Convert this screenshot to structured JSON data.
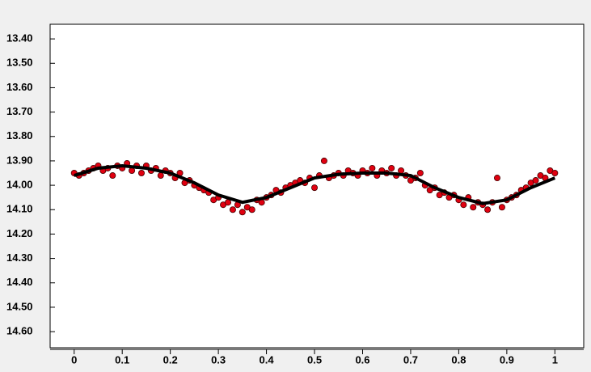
{
  "chart_data": {
    "type": "scatter",
    "xlim": [
      -0.05,
      1.06
    ],
    "ylim": [
      13.34,
      14.666
    ],
    "y_inverted": true,
    "xticks": [
      0,
      0.1,
      0.2,
      0.3,
      0.4,
      0.5,
      0.6,
      0.7,
      0.8,
      0.9,
      1
    ],
    "yticks": [
      {
        "value": 13.4,
        "label": "13.40"
      },
      {
        "value": 13.5,
        "label": "13.50"
      },
      {
        "value": 13.6,
        "label": "13.60"
      },
      {
        "value": 13.7,
        "label": "13.70"
      },
      {
        "value": 13.8,
        "label": "13.80"
      },
      {
        "value": 13.9,
        "label": "13.90"
      },
      {
        "value": 14.0,
        "label": "14.00"
      },
      {
        "value": 14.1,
        "label": "14.10"
      },
      {
        "value": 14.2,
        "label": "14.20"
      },
      {
        "value": 14.3,
        "label": "14.30"
      },
      {
        "value": 14.4,
        "label": "14.40"
      },
      {
        "value": 14.5,
        "label": "14.50"
      },
      {
        "value": 14.6,
        "label": "14.60"
      }
    ],
    "series": [
      {
        "color": "#e00010",
        "mode": "points",
        "x": [
          0,
          0.01,
          0.02,
          0.03,
          0.04,
          0.05,
          0.06,
          0.07,
          0.08,
          0.09,
          0.1,
          0.11,
          0.12,
          0.13,
          0.14,
          0.15,
          0.16,
          0.17,
          0.18,
          0.19,
          0.2,
          0.21,
          0.22,
          0.23,
          0.24,
          0.25,
          0.26,
          0.27,
          0.28,
          0.29,
          0.3,
          0.31,
          0.32,
          0.33,
          0.34,
          0.35,
          0.36,
          0.37,
          0.38,
          0.39,
          0.4,
          0.41,
          0.42,
          0.43,
          0.44,
          0.45,
          0.46,
          0.47,
          0.48,
          0.49,
          0.5,
          0.51,
          0.52,
          0.53,
          0.54,
          0.55,
          0.56,
          0.57,
          0.58,
          0.59,
          0.6,
          0.61,
          0.62,
          0.63,
          0.64,
          0.65,
          0.66,
          0.67,
          0.68,
          0.69,
          0.7,
          0.71,
          0.72,
          0.73,
          0.74,
          0.75,
          0.76,
          0.77,
          0.78,
          0.79,
          0.8,
          0.81,
          0.82,
          0.83,
          0.84,
          0.85,
          0.86,
          0.87,
          0.88,
          0.89,
          0.9,
          0.91,
          0.92,
          0.93,
          0.94,
          0.95,
          0.96,
          0.97,
          0.98,
          0.99,
          1
        ],
        "values": [
          13.95,
          13.96,
          13.95,
          13.94,
          13.93,
          13.92,
          13.94,
          13.93,
          13.96,
          13.92,
          13.93,
          13.91,
          13.94,
          13.92,
          13.95,
          13.92,
          13.94,
          13.93,
          13.96,
          13.94,
          13.95,
          13.97,
          13.95,
          13.99,
          13.98,
          14.0,
          14.01,
          14.02,
          14.03,
          14.06,
          14.05,
          14.08,
          14.07,
          14.1,
          14.08,
          14.11,
          14.09,
          14.1,
          14.06,
          14.07,
          14.05,
          14.04,
          14.02,
          14.03,
          14.01,
          14.0,
          13.99,
          13.98,
          13.99,
          13.97,
          14.01,
          13.96,
          13.9,
          13.97,
          13.96,
          13.95,
          13.96,
          13.94,
          13.95,
          13.96,
          13.94,
          13.95,
          13.93,
          13.96,
          13.94,
          13.95,
          13.93,
          13.96,
          13.94,
          13.96,
          13.98,
          13.97,
          13.95,
          14.0,
          14.02,
          14.01,
          14.04,
          14.03,
          14.05,
          14.04,
          14.06,
          14.08,
          14.05,
          14.09,
          14.07,
          14.08,
          14.1,
          14.07,
          13.97,
          14.09,
          14.06,
          14.05,
          14.04,
          14.02,
          14.01,
          13.99,
          13.98,
          13.96,
          13.97,
          13.94,
          13.95
        ]
      },
      {
        "color": "#000000",
        "mode": "line",
        "x": [
          0,
          0.05,
          0.1,
          0.15,
          0.2,
          0.25,
          0.3,
          0.35,
          0.4,
          0.45,
          0.5,
          0.55,
          0.6,
          0.65,
          0.7,
          0.75,
          0.8,
          0.85,
          0.9,
          0.95,
          1
        ],
        "values": [
          13.96,
          13.93,
          13.92,
          13.93,
          13.95,
          13.99,
          14.04,
          14.07,
          14.05,
          14.01,
          13.97,
          13.955,
          13.95,
          13.95,
          13.96,
          14.01,
          14.05,
          14.075,
          14.06,
          14.01,
          13.97
        ]
      }
    ]
  }
}
